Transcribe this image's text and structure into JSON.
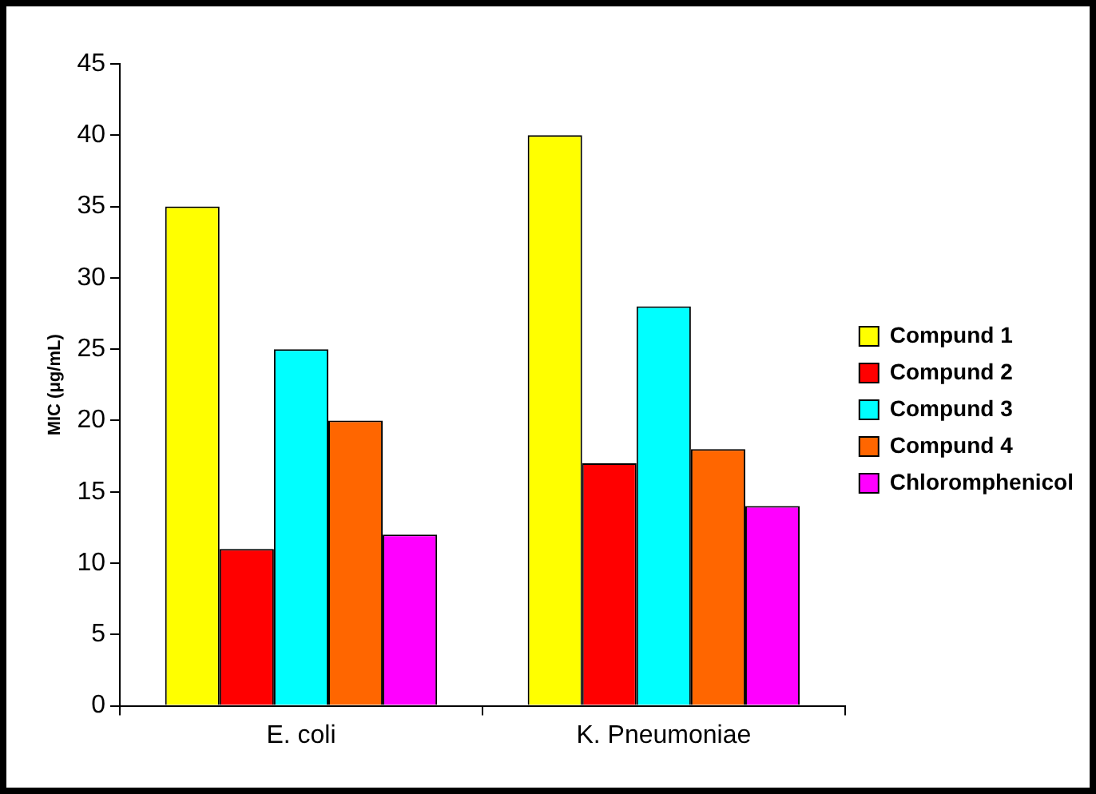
{
  "chart_data": {
    "type": "bar",
    "ylabel": "MIC (μg/mL)",
    "categories": [
      "E. coli",
      "K. Pneumoniae"
    ],
    "series": [
      {
        "name": "Compund 1",
        "color": "#ffff00",
        "values": [
          35,
          40
        ]
      },
      {
        "name": "Compund 2",
        "color": "#ff0000",
        "values": [
          11,
          17
        ]
      },
      {
        "name": "Compund 3",
        "color": "#00ffff",
        "values": [
          25,
          28
        ]
      },
      {
        "name": "Compund 4",
        "color": "#ff6600",
        "values": [
          20,
          18
        ]
      },
      {
        "name": "Chloromphenicol",
        "color": "#ff00ff",
        "values": [
          12,
          14
        ]
      }
    ],
    "ylim": [
      0,
      45
    ],
    "yticks": [
      0,
      5,
      10,
      15,
      20,
      25,
      30,
      35,
      40,
      45
    ],
    "grid": false,
    "legend": "right"
  }
}
